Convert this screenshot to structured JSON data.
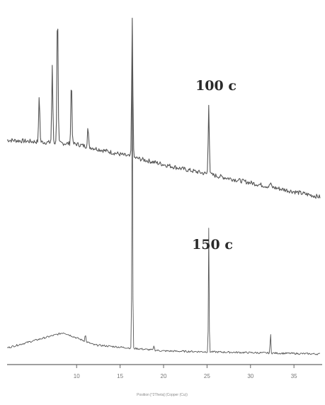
{
  "chart_data": {
    "type": "line",
    "title": "",
    "xlabel": "Position [°2Theta] (Copper (Cu))",
    "ylabel": "",
    "xlim": [
      2,
      38
    ],
    "x_ticks": [
      10,
      15,
      20,
      25,
      30,
      35
    ],
    "x_tick_labels": [
      "10",
      "15",
      "20",
      "25",
      "30",
      "35"
    ],
    "grid": false,
    "legend": "none",
    "colors": {
      "trace": "#555555",
      "axis": "#666666",
      "label": "#2a2a2a"
    },
    "series": [
      {
        "name": "100 c",
        "baseline": [
          [
            2,
            0.34
          ],
          [
            10,
            0.32
          ],
          [
            16,
            0.26
          ],
          [
            22,
            0.2
          ],
          [
            30,
            0.13
          ],
          [
            38,
            0.06
          ]
        ],
        "peaks": [
          {
            "x": 5.7,
            "y": 0.56
          },
          {
            "x": 7.2,
            "y": 0.7
          },
          {
            "x": 7.8,
            "y": 1.0
          },
          {
            "x": 9.4,
            "y": 0.64
          },
          {
            "x": 11.3,
            "y": 0.4
          },
          {
            "x": 16.4,
            "y": 0.94
          },
          {
            "x": 25.2,
            "y": 0.52
          },
          {
            "x": 32.3,
            "y": 0.13
          }
        ]
      },
      {
        "name": "150 c",
        "baseline": [
          [
            2,
            0.05
          ],
          [
            8.5,
            0.1
          ],
          [
            12,
            0.06
          ],
          [
            20,
            0.04
          ],
          [
            38,
            0.03
          ]
        ],
        "peaks": [
          {
            "x": 11.0,
            "y": 0.1
          },
          {
            "x": 16.4,
            "y": 1.0
          },
          {
            "x": 18.9,
            "y": 0.06
          },
          {
            "x": 25.2,
            "y": 0.44
          },
          {
            "x": 32.3,
            "y": 0.1
          }
        ]
      }
    ]
  }
}
